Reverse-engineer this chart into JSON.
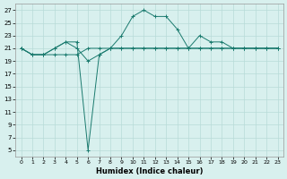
{
  "xlabel": "Humidex (Indice chaleur)",
  "x": [
    0,
    1,
    2,
    3,
    4,
    5,
    6,
    7,
    8,
    9,
    10,
    11,
    12,
    13,
    14,
    15,
    16,
    17,
    18,
    19,
    20,
    21,
    22,
    23
  ],
  "line1": [
    21,
    20,
    20,
    20,
    20,
    20,
    21,
    21,
    21,
    21,
    21,
    21,
    21,
    21,
    21,
    21,
    21,
    21,
    21,
    21,
    21,
    21,
    21,
    21
  ],
  "line2": [
    21,
    20,
    20,
    21,
    22,
    21,
    19,
    20,
    21,
    21,
    21,
    21,
    21,
    21,
    21,
    21,
    21,
    21,
    21,
    21,
    21,
    21,
    21,
    21
  ],
  "line3": [
    21,
    20,
    20,
    21,
    22,
    22,
    5,
    20,
    21,
    23,
    26,
    27,
    26,
    26,
    24,
    21,
    23,
    22,
    22,
    21,
    21,
    21,
    21,
    21
  ],
  "line_color": "#1a7a6e",
  "bg_color": "#d8f0ee",
  "grid_color": "#b8dbd8",
  "ylim": [
    4,
    28
  ],
  "yticks": [
    5,
    7,
    9,
    11,
    13,
    15,
    17,
    19,
    21,
    23,
    25,
    27
  ],
  "xlim": [
    -0.5,
    23.5
  ],
  "xticks": [
    0,
    1,
    2,
    3,
    4,
    5,
    6,
    7,
    8,
    9,
    10,
    11,
    12,
    13,
    14,
    15,
    16,
    17,
    18,
    19,
    20,
    21,
    22,
    23
  ]
}
